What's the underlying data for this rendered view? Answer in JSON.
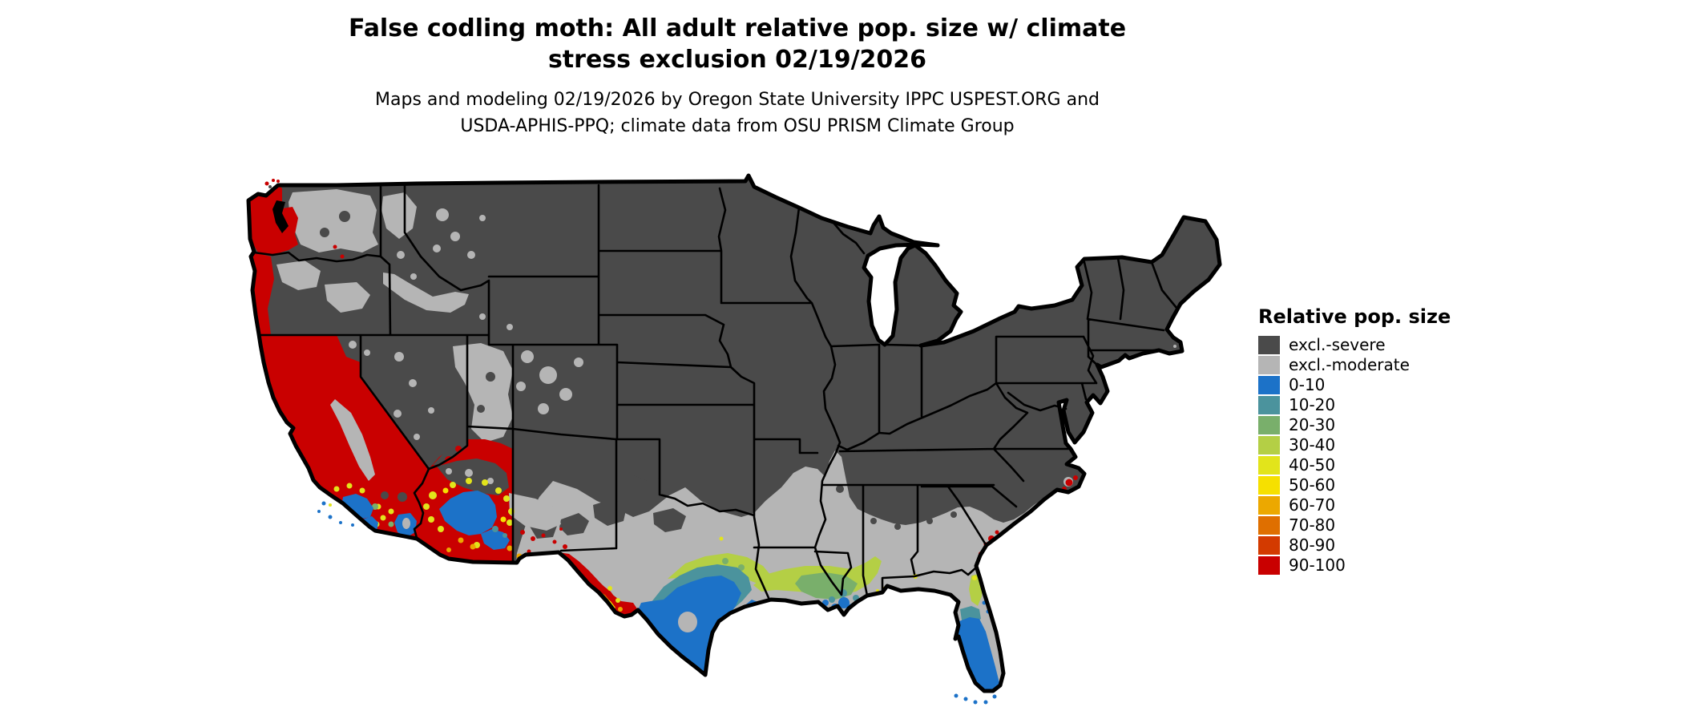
{
  "title": {
    "line1": "False codling moth: All adult relative pop. size w/ climate",
    "line2": "stress exclusion 02/19/2026"
  },
  "subtitle": {
    "line1": "Maps and modeling 02/19/2026 by Oregon State University IPPC USPEST.ORG and",
    "line2": "USDA-APHIS-PPQ; climate data from OSU PRISM Climate Group"
  },
  "legend": {
    "title": "Relative pop. size",
    "items": [
      {
        "label": "excl.-severe",
        "color": "#4a4a4a"
      },
      {
        "label": "excl.-moderate",
        "color": "#b5b5b5"
      },
      {
        "label": "0-10",
        "color": "#1c72c8"
      },
      {
        "label": "10-20",
        "color": "#4b939d"
      },
      {
        "label": "20-30",
        "color": "#79af6b"
      },
      {
        "label": "30-40",
        "color": "#b4cf45"
      },
      {
        "label": "40-50",
        "color": "#e2e41b"
      },
      {
        "label": "50-60",
        "color": "#f6e000"
      },
      {
        "label": "60-70",
        "color": "#eca800"
      },
      {
        "label": "70-80",
        "color": "#df6f00"
      },
      {
        "label": "80-90",
        "color": "#d33a00"
      },
      {
        "label": "90-100",
        "color": "#c90000"
      }
    ]
  },
  "palette": {
    "excl-severe": "#4a4a4a",
    "excl-moderate": "#b5b5b5",
    "p0-10": "#1c72c8",
    "p10-20": "#4b939d",
    "p20-30": "#79af6b",
    "p30-40": "#b4cf45",
    "p40-50": "#e2e41b",
    "p50-60": "#f6e000",
    "p60-70": "#eca800",
    "p70-80": "#df6f00",
    "p80-90": "#d33a00",
    "p90-100": "#c90000",
    "state-border": "#000000",
    "water": "#ffffff"
  },
  "map_regions": [
    {
      "region": "Interior West, Plains, Midwest and Northeast",
      "class": "excl.-severe"
    },
    {
      "region": "Southern plains through Gulf and Southeast coastal plain",
      "class": "excl.-moderate"
    },
    {
      "region": "Pacific coast, California Central Valley, western Arizona",
      "class": "90-100"
    },
    {
      "region": "Big Bend Texas and Rio Grande valley fringes",
      "class": "60-100"
    },
    {
      "region": "South Texas, New Orleans area, South Florida, Phoenix-Tucson basin, coastal S. California",
      "class": "0-10"
    },
    {
      "region": "Transition fringes along Gulf coast and central Florida",
      "class": "10-40"
    },
    {
      "region": "Yellow-orange halos around low-population coastal zones",
      "class": "40-80"
    },
    {
      "region": "Outer Banks NC, Charleston and Savannah coast specks",
      "class": "90-100"
    }
  ]
}
